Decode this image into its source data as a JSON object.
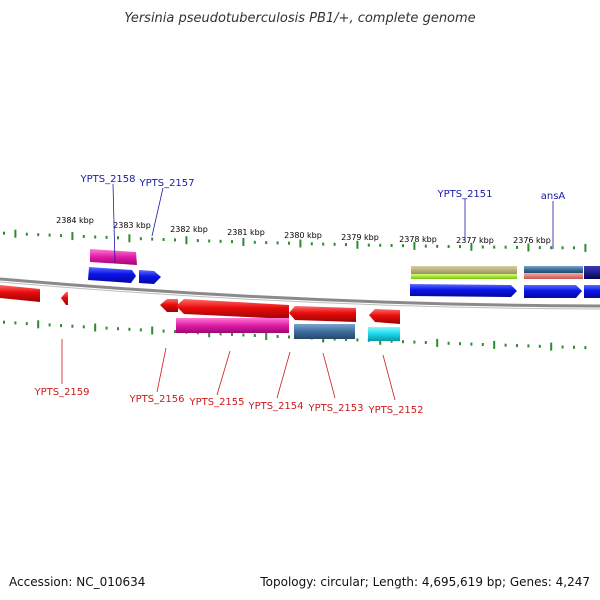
{
  "title": "Yersinia pseudotuberculosis PB1/+, complete genome",
  "scale_labels": [
    "2384 kbp",
    "2383 kbp",
    "2382 kbp",
    "2381 kbp",
    "2380 kbp",
    "2379 kbp",
    "2378 kbp",
    "2377 kbp",
    "2376 kbp"
  ],
  "forward_genes": [
    {
      "label": "YPTS_2158"
    },
    {
      "label": "YPTS_2157"
    },
    {
      "label": "YPTS_2151"
    },
    {
      "label": "ansA"
    }
  ],
  "reverse_genes": [
    {
      "label": "YPTS_2159"
    },
    {
      "label": "YPTS_2156"
    },
    {
      "label": "YPTS_2155"
    },
    {
      "label": "YPTS_2154"
    },
    {
      "label": "YPTS_2153"
    },
    {
      "label": "YPTS_2152"
    }
  ],
  "footer": {
    "accession": "Accession: NC_010634",
    "summary": "Topology: circular; Length: 4,695,619 bp; Genes: 4,247"
  },
  "colors": {
    "backbone": "#8a8a8a",
    "tick": "#2e8b2e",
    "forward_label": "#1a1aa6",
    "reverse_label": "#cc1a1a",
    "blue": "#0a14e8",
    "red": "#e80a0a",
    "magenta": "#e01aa6",
    "steel": "#3f6f9f",
    "cyan": "#18d8e8",
    "olive": "#b0a870",
    "lime": "#a6e81a",
    "salmon": "#e07070",
    "navy": "#0a0a8a"
  }
}
